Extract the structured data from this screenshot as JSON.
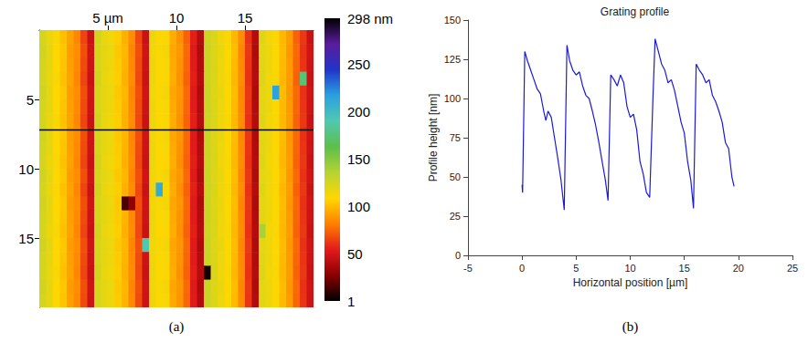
{
  "chart_data": [
    {
      "type": "heatmap",
      "panel": "(a)",
      "x": [
        0.25,
        0.75,
        1.25,
        1.75,
        2.25,
        2.75,
        3.25,
        3.75,
        4.25,
        4.75,
        5.25,
        5.75,
        6.25,
        6.75,
        7.25,
        7.75,
        8.25,
        8.75,
        9.25,
        9.75,
        10.25,
        10.75,
        11.25,
        11.75,
        12.25,
        12.75,
        13.25,
        13.75,
        14.25,
        14.75,
        15.25,
        15.75,
        16.25,
        16.75,
        17.25,
        17.75,
        18.25,
        18.75,
        19.25,
        19.75
      ],
      "y": [
        0.5,
        1.5,
        2.5,
        3.5,
        4.5,
        5.5,
        6.5,
        7.5,
        8.5,
        9.5,
        10.5,
        11.5,
        12.5,
        13.5,
        14.5,
        15.5,
        16.5,
        17.5,
        18.5,
        19.5
      ],
      "z": [
        [
          124,
          117,
          111,
          102,
          93,
          84,
          66,
          47,
          126,
          117,
          114,
          106,
          97,
          86,
          67,
          47,
          116,
          109,
          111,
          96,
          87,
          74,
          56,
          41,
          127,
          123,
          115,
          111,
          99,
          86,
          61,
          41,
          121,
          114,
          111,
          99,
          91,
          74,
          63,
          47
        ],
        [
          126,
          119,
          109,
          104,
          91,
          86,
          69,
          49,
          124,
          119,
          116,
          104,
          99,
          84,
          69,
          49,
          114,
          111,
          113,
          94,
          89,
          76,
          54,
          39,
          129,
          121,
          117,
          109,
          101,
          84,
          63,
          39,
          119,
          116,
          109,
          101,
          89,
          76,
          61,
          49
        ],
        [
          125,
          118,
          110,
          103,
          92,
          85,
          68,
          48,
          125,
          118,
          115,
          105,
          98,
          85,
          68,
          48,
          115,
          110,
          112,
          95,
          88,
          75,
          55,
          40,
          128,
          122,
          116,
          110,
          100,
          85,
          62,
          40,
          120,
          115,
          110,
          100,
          90,
          75,
          62,
          48
        ],
        [
          124,
          117,
          111,
          102,
          93,
          84,
          66,
          47,
          126,
          117,
          114,
          106,
          97,
          86,
          67,
          47,
          116,
          109,
          111,
          96,
          87,
          74,
          56,
          41,
          127,
          123,
          115,
          111,
          99,
          86,
          61,
          41,
          121,
          114,
          111,
          99,
          91,
          74,
          175,
          47
        ],
        [
          126,
          119,
          109,
          104,
          91,
          86,
          69,
          49,
          124,
          119,
          116,
          104,
          99,
          84,
          69,
          49,
          114,
          111,
          113,
          94,
          89,
          76,
          54,
          39,
          129,
          121,
          117,
          109,
          101,
          84,
          63,
          39,
          119,
          116,
          215,
          101,
          89,
          76,
          61,
          49
        ],
        [
          125,
          118,
          110,
          103,
          92,
          85,
          68,
          48,
          125,
          118,
          115,
          105,
          98,
          85,
          68,
          48,
          115,
          110,
          112,
          95,
          88,
          75,
          55,
          40,
          128,
          122,
          116,
          110,
          100,
          85,
          62,
          40,
          120,
          115,
          110,
          100,
          90,
          75,
          62,
          48
        ],
        [
          124,
          117,
          111,
          102,
          93,
          84,
          66,
          47,
          126,
          117,
          114,
          106,
          97,
          86,
          67,
          47,
          116,
          109,
          111,
          96,
          87,
          74,
          56,
          41,
          127,
          123,
          115,
          111,
          99,
          86,
          61,
          41,
          121,
          114,
          111,
          99,
          91,
          74,
          63,
          47
        ],
        [
          126,
          119,
          109,
          104,
          91,
          86,
          69,
          49,
          124,
          119,
          116,
          104,
          99,
          84,
          69,
          49,
          114,
          111,
          113,
          94,
          89,
          76,
          54,
          39,
          129,
          121,
          117,
          109,
          101,
          84,
          63,
          39,
          119,
          116,
          109,
          101,
          89,
          76,
          61,
          49
        ],
        [
          125,
          118,
          110,
          103,
          92,
          85,
          68,
          48,
          125,
          118,
          115,
          105,
          98,
          85,
          68,
          48,
          115,
          110,
          112,
          95,
          88,
          75,
          55,
          40,
          128,
          122,
          116,
          110,
          100,
          85,
          62,
          40,
          120,
          115,
          110,
          100,
          90,
          75,
          62,
          48
        ],
        [
          124,
          117,
          111,
          102,
          93,
          84,
          66,
          47,
          126,
          117,
          114,
          106,
          97,
          86,
          67,
          47,
          116,
          109,
          111,
          96,
          87,
          74,
          56,
          41,
          127,
          123,
          115,
          111,
          99,
          86,
          61,
          41,
          121,
          114,
          111,
          99,
          91,
          74,
          63,
          47
        ],
        [
          126,
          119,
          109,
          104,
          91,
          86,
          69,
          49,
          124,
          119,
          116,
          104,
          99,
          84,
          69,
          49,
          114,
          111,
          113,
          94,
          89,
          76,
          54,
          39,
          129,
          121,
          117,
          109,
          101,
          84,
          63,
          39,
          119,
          116,
          109,
          101,
          89,
          76,
          61,
          49
        ],
        [
          124,
          117,
          111,
          102,
          93,
          84,
          66,
          47,
          126,
          117,
          114,
          106,
          97,
          86,
          67,
          47,
          116,
          210,
          111,
          96,
          87,
          74,
          56,
          41,
          127,
          123,
          115,
          111,
          99,
          86,
          61,
          41,
          121,
          114,
          111,
          99,
          91,
          74,
          63,
          47
        ],
        [
          126,
          119,
          109,
          104,
          91,
          86,
          69,
          49,
          124,
          119,
          116,
          104,
          15,
          30,
          69,
          49,
          114,
          111,
          113,
          94,
          89,
          76,
          54,
          39,
          129,
          121,
          117,
          109,
          101,
          84,
          63,
          39,
          119,
          116,
          109,
          101,
          89,
          76,
          61,
          49
        ],
        [
          125,
          118,
          110,
          103,
          92,
          85,
          68,
          48,
          125,
          118,
          115,
          105,
          98,
          85,
          68,
          48,
          115,
          110,
          112,
          95,
          88,
          75,
          55,
          40,
          128,
          122,
          116,
          110,
          100,
          85,
          62,
          40,
          120,
          115,
          110,
          100,
          90,
          75,
          62,
          48
        ],
        [
          124,
          117,
          111,
          102,
          93,
          84,
          66,
          47,
          126,
          117,
          114,
          106,
          97,
          86,
          67,
          47,
          116,
          109,
          111,
          96,
          87,
          74,
          56,
          41,
          127,
          123,
          115,
          111,
          99,
          86,
          61,
          41,
          140,
          114,
          111,
          99,
          91,
          74,
          63,
          47
        ],
        [
          126,
          119,
          109,
          104,
          91,
          86,
          69,
          49,
          124,
          119,
          116,
          104,
          99,
          84,
          69,
          190,
          114,
          111,
          113,
          94,
          89,
          76,
          54,
          39,
          129,
          121,
          117,
          109,
          101,
          84,
          63,
          39,
          119,
          116,
          109,
          101,
          89,
          76,
          61,
          49
        ],
        [
          125,
          118,
          110,
          103,
          92,
          85,
          68,
          48,
          125,
          118,
          115,
          105,
          98,
          85,
          68,
          48,
          115,
          110,
          112,
          95,
          88,
          75,
          55,
          40,
          128,
          122,
          116,
          110,
          100,
          85,
          62,
          40,
          120,
          115,
          110,
          100,
          90,
          75,
          62,
          48
        ],
        [
          124,
          117,
          111,
          102,
          93,
          84,
          66,
          47,
          126,
          117,
          114,
          106,
          97,
          86,
          67,
          47,
          116,
          109,
          111,
          96,
          87,
          74,
          56,
          41,
          5,
          123,
          115,
          111,
          99,
          86,
          61,
          41,
          121,
          114,
          111,
          99,
          91,
          74,
          63,
          47
        ],
        [
          126,
          119,
          109,
          104,
          91,
          86,
          69,
          49,
          124,
          119,
          116,
          104,
          99,
          84,
          69,
          49,
          114,
          111,
          113,
          94,
          89,
          76,
          54,
          39,
          129,
          121,
          117,
          109,
          101,
          84,
          63,
          39,
          119,
          116,
          109,
          101,
          89,
          76,
          61,
          49
        ],
        [
          125,
          118,
          110,
          103,
          92,
          85,
          68,
          48,
          125,
          118,
          115,
          105,
          98,
          85,
          68,
          48,
          115,
          110,
          112,
          95,
          88,
          75,
          55,
          40,
          128,
          122,
          116,
          110,
          100,
          85,
          62,
          40,
          120,
          115,
          110,
          100,
          90,
          75,
          62,
          48
        ]
      ],
      "xlim": [
        0,
        20
      ],
      "ylim": [
        0,
        20
      ],
      "xticks": [
        {
          "value": 5,
          "label": "5 µm"
        },
        10,
        15
      ],
      "yticks": [
        5,
        10,
        15
      ],
      "profile_line_y": 7.2,
      "colorbar": {
        "range": [
          1,
          298
        ],
        "ticks": [
          1,
          50,
          100,
          150,
          200,
          250,
          {
            "value": 298,
            "label": "298 nm"
          }
        ],
        "colors": [
          "#000000",
          "#8b0000",
          "#e31a1c",
          "#ff8000",
          "#ffd700",
          "#b5d334",
          "#5cbf4a",
          "#50c8b0",
          "#2aa0e0",
          "#2035c8",
          "#5a1c9c",
          "#000000"
        ]
      }
    },
    {
      "type": "line",
      "panel": "(b)",
      "title": "Grating profile",
      "x_label": "Horizontal position [µm]",
      "y_label": "Profile height [nm]",
      "x": [
        0,
        0.05,
        0.25,
        0.5,
        0.8,
        1.1,
        1.4,
        1.7,
        2.0,
        2.2,
        2.4,
        2.7,
        3.0,
        3.3,
        3.6,
        3.9,
        4.15,
        4.4,
        4.7,
        5.0,
        5.3,
        5.6,
        5.9,
        6.2,
        6.5,
        6.8,
        7.1,
        7.4,
        7.7,
        7.95,
        8.2,
        8.5,
        8.8,
        9.1,
        9.4,
        9.7,
        10.0,
        10.3,
        10.6,
        10.9,
        11.2,
        11.5,
        11.8,
        12.1,
        12.3,
        12.6,
        12.9,
        13.2,
        13.5,
        13.8,
        14.1,
        14.4,
        14.7,
        15.0,
        15.3,
        15.6,
        15.85,
        16.1,
        16.4,
        16.7,
        17.0,
        17.3,
        17.6,
        17.9,
        18.2,
        18.5,
        18.8,
        19.1,
        19.4,
        19.6
      ],
      "values": [
        45,
        40,
        130,
        124,
        118,
        112,
        106,
        103,
        92,
        86,
        92,
        88,
        75,
        62,
        48,
        29,
        134,
        124,
        118,
        115,
        117,
        108,
        102,
        100,
        92,
        83,
        72,
        60,
        48,
        35,
        115,
        112,
        108,
        115,
        110,
        95,
        88,
        90,
        80,
        60,
        52,
        40,
        37,
        100,
        138,
        130,
        122,
        118,
        110,
        112,
        105,
        95,
        85,
        78,
        60,
        48,
        30,
        122,
        118,
        115,
        110,
        112,
        102,
        98,
        92,
        85,
        72,
        68,
        50,
        44
      ],
      "color": "#1a1adb",
      "xlim": [
        -5,
        25
      ],
      "ylim": [
        0,
        150
      ],
      "xticks": [
        -5,
        0,
        5,
        10,
        15,
        20,
        25
      ],
      "yticks": [
        0,
        25,
        50,
        75,
        100,
        125,
        150
      ],
      "grid": false
    }
  ]
}
